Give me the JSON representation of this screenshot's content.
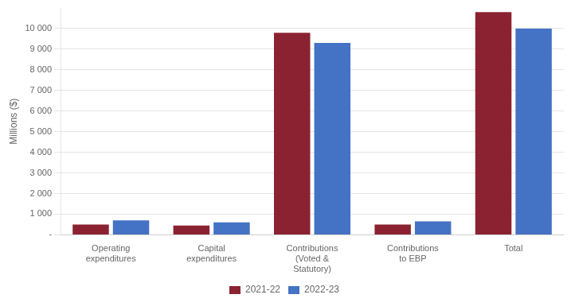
{
  "chart_data": {
    "type": "bar",
    "categories": [
      "Operating\nexpenditures",
      "Capital\nexpenditures",
      "Contributions\n(Voted &\nStatutory)",
      "Contributions\nto EBP",
      "Total"
    ],
    "series": [
      {
        "name": "2021-22",
        "color": "#8B2232",
        "values": [
          500,
          450,
          9800,
          500,
          10800
        ]
      },
      {
        "name": "2022-23",
        "color": "#4472C4",
        "values": [
          700,
          600,
          9300,
          650,
          10000
        ]
      }
    ],
    "ylabel": "Millions ($)",
    "ylim": [
      0,
      11000
    ],
    "yticks": [
      {
        "value": 0,
        "label": "-"
      },
      {
        "value": 1000,
        "label": "1 000"
      },
      {
        "value": 2000,
        "label": "2 000"
      },
      {
        "value": 3000,
        "label": "3 000"
      },
      {
        "value": 4000,
        "label": "4 000"
      },
      {
        "value": 5000,
        "label": "5 000"
      },
      {
        "value": 6000,
        "label": "6 000"
      },
      {
        "value": 7000,
        "label": "7 000"
      },
      {
        "value": 8000,
        "label": "8 000"
      },
      {
        "value": 9000,
        "label": "9 000"
      },
      {
        "value": 10000,
        "label": "10 000"
      }
    ],
    "grid": true,
    "legend": "bottom"
  }
}
